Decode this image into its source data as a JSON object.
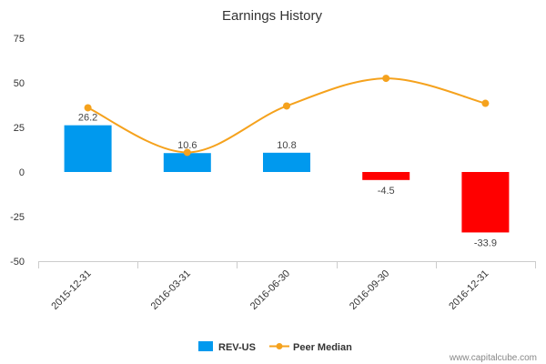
{
  "chart_data": {
    "type": "bar",
    "title": "Earnings History",
    "categories": [
      "2015-12-31",
      "2016-03-31",
      "2016-06-30",
      "2016-09-30",
      "2016-12-31"
    ],
    "ylim": [
      -50,
      75
    ],
    "yticks": [
      75,
      50,
      25,
      0,
      -25,
      -50
    ],
    "grid": false,
    "legend_position": "bottom",
    "series": [
      {
        "name": "REV-US",
        "type": "bar",
        "values": [
          26.2,
          10.6,
          10.8,
          -4.5,
          -33.9
        ],
        "data_labels": [
          "26.2",
          "10.6",
          "10.8",
          "-4.5",
          "-33.9"
        ],
        "color_positive": "#0099ee",
        "color_negative": "#ff0000"
      },
      {
        "name": "Peer Median",
        "type": "line",
        "values": [
          36,
          11,
          37,
          52.5,
          38.5
        ],
        "color": "#f5a21d"
      }
    ]
  },
  "watermark": "www.capitalcube.com"
}
